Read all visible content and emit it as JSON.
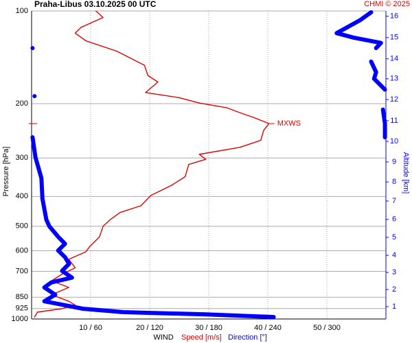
{
  "chart_data": {
    "type": "wind-profile",
    "title": "Praha-Libus   03.10.2025 00 UTC",
    "credit": "CHMI © 2025",
    "ylabel": "Pressure [hPa]",
    "xlabel": "WIND",
    "ylim": [
      100,
      1000
    ],
    "ylog": true,
    "yticks": [
      100,
      200,
      300,
      400,
      500,
      600,
      700,
      850,
      925,
      1000
    ],
    "xlim": [
      0,
      60
    ],
    "x2lim": [
      0,
      360
    ],
    "xticks": [
      {
        "value": 10,
        "label": "10 / 60"
      },
      {
        "value": 20,
        "label": "20 / 120"
      },
      {
        "value": 30,
        "label": "30 / 180"
      },
      {
        "value": 40,
        "label": "40 / 240"
      },
      {
        "value": 50,
        "label": "50 / 300"
      }
    ],
    "altitude_axis": {
      "label": "Altitude [km]",
      "color": "#0000ff",
      "ticks": [
        1,
        2,
        3,
        4,
        5,
        6,
        7,
        8,
        9,
        10,
        11,
        12,
        13,
        14,
        15,
        16
      ],
      "tick_pressures": [
        912,
        802,
        706,
        621,
        543,
        475,
        414,
        359,
        309,
        265,
        227,
        194,
        166,
        143,
        122,
        104
      ]
    },
    "series": [
      {
        "name": "Speed [m/s]",
        "color": "#e00000",
        "axis": "x",
        "pressure": [
          100,
          105,
          113,
          118,
          125,
          135,
          150,
          162,
          170,
          184,
          191,
          199,
          206,
          214,
          222,
          232,
          244,
          263,
          277,
          292,
          303,
          315,
          345,
          368,
          397,
          429,
          451,
          476,
          500,
          541,
          583,
          605,
          640,
          682,
          716,
          752,
          790,
          834,
          876,
          902,
          926,
          950,
          985
        ],
        "values": [
          10.9,
          12.1,
          8.4,
          7.4,
          9.2,
          14.4,
          19.1,
          19.7,
          21.4,
          19.3,
          24.9,
          28.4,
          33.0,
          35.3,
          37.7,
          40.2,
          39.3,
          38.8,
          35.3,
          28.4,
          29.5,
          26.6,
          26.0,
          23.7,
          20.2,
          18.5,
          15.0,
          13.3,
          12.1,
          11.5,
          9.8,
          9.2,
          6.3,
          7.4,
          5.1,
          3.4,
          6.3,
          3.4,
          6.3,
          7.4,
          5.1,
          1.0,
          0.5
        ]
      },
      {
        "name": "Direction [°]",
        "color": "#0000ff",
        "axis": "x2",
        "pressure": [
          101,
          107,
          118,
          122,
          127,
          132,
          null,
          132,
          null,
          146,
          158,
          166,
          180,
          null,
          189,
          null,
          209,
          232,
          257,
          null,
          257,
          299,
          349,
          407,
          476,
          500,
          541,
          570,
          599,
          630,
          662,
          698,
          734,
          761,
          790,
          834,
          876,
          902,
          926,
          950,
          966,
          985
        ],
        "values": [
          345,
          334,
          310,
          327,
          355,
          350,
          null,
          1,
          null,
          345,
          350,
          348,
          359,
          null,
          3,
          null,
          357,
          359,
          359,
          null,
          1,
          4,
          10,
          11,
          15,
          18,
          27,
          34,
          27,
          34,
          38,
          31,
          41,
          20,
          13,
          24,
          13,
          34,
          52,
          93,
          177,
          246
        ]
      }
    ],
    "annotation": {
      "text": "MXWS",
      "pressure": 232,
      "speed": 40.2,
      "color": "#e00000"
    }
  }
}
